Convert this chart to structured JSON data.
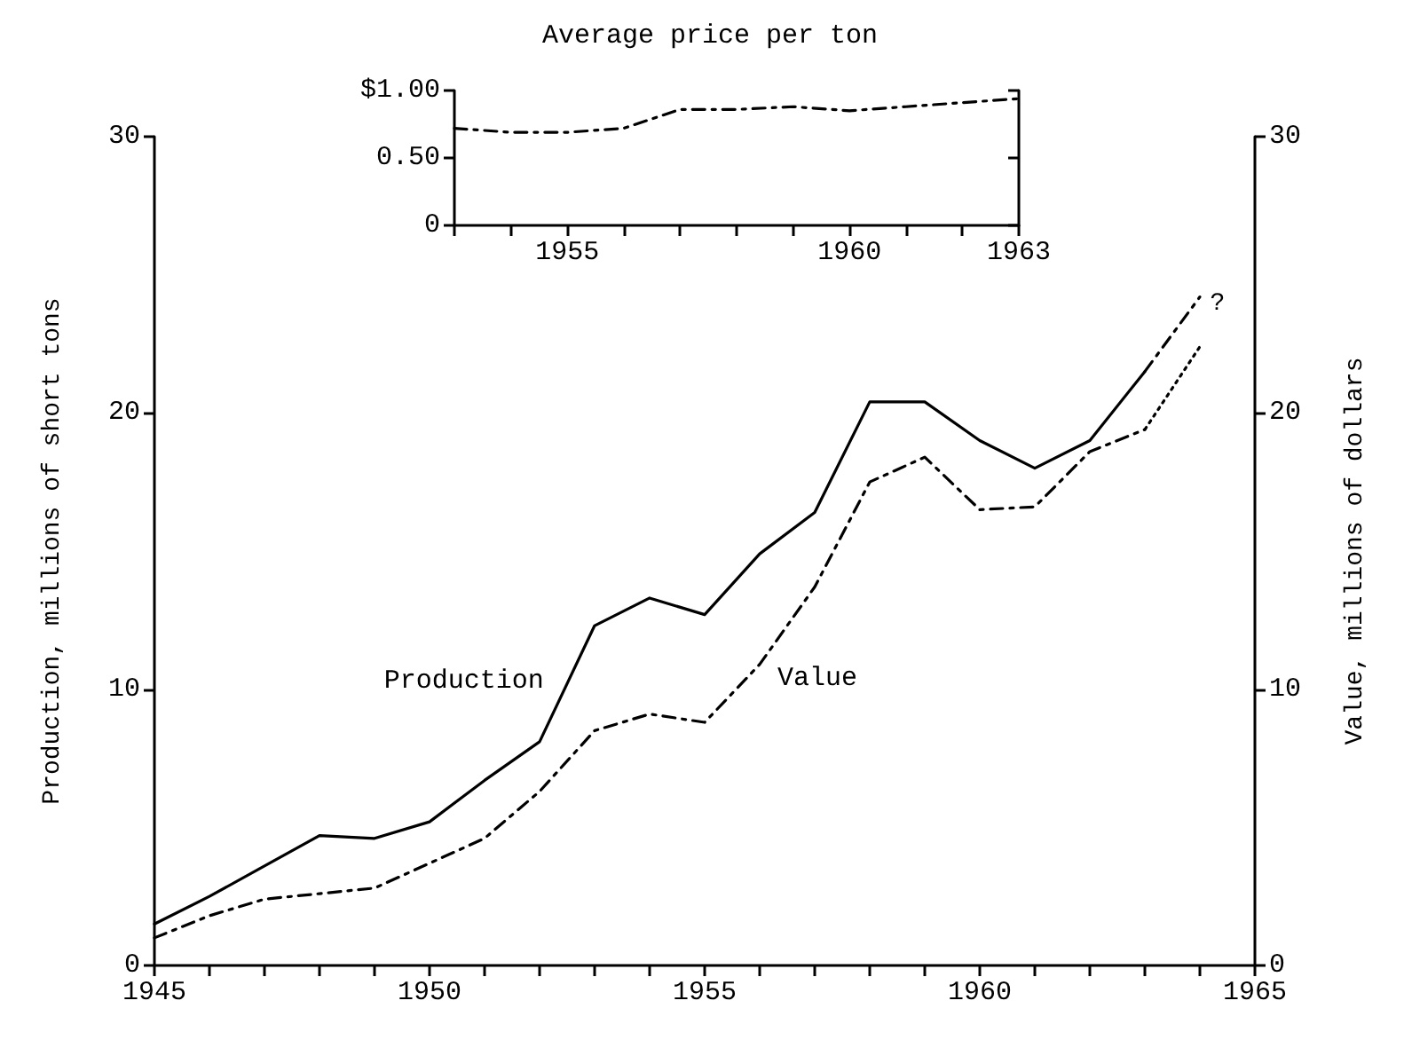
{
  "chart_data": [
    {
      "type": "line",
      "ylabel": "Production, millions of short tons",
      "y2label": "Value, millions of dollars",
      "x": [
        1945,
        1946,
        1947,
        1948,
        1949,
        1950,
        1951,
        1952,
        1953,
        1954,
        1955,
        1956,
        1957,
        1958,
        1959,
        1960,
        1961,
        1962,
        1963,
        1964
      ],
      "series": [
        {
          "name": "Production",
          "color": "#000000",
          "line_style": "solid",
          "values": [
            1.5,
            2.5,
            3.6,
            4.7,
            4.6,
            5.2,
            6.7,
            8.1,
            12.3,
            13.3,
            12.7,
            14.9,
            16.4,
            20.4,
            20.4,
            19.0,
            18.0,
            19.0,
            21.5,
            null
          ]
        },
        {
          "name": "Value",
          "color": "#000000",
          "axis": "y2",
          "line_style": "dashed",
          "values": [
            1.0,
            1.8,
            2.4,
            2.6,
            2.8,
            3.7,
            4.6,
            6.3,
            8.5,
            9.1,
            8.8,
            10.9,
            13.7,
            17.5,
            18.4,
            16.5,
            16.6,
            18.6,
            19.4,
            null
          ]
        },
        {
          "color": "#000000",
          "line_style": "dashed",
          "values": [
            null,
            null,
            null,
            null,
            null,
            null,
            null,
            null,
            null,
            null,
            null,
            null,
            null,
            null,
            null,
            null,
            null,
            null,
            21.5,
            24.2
          ]
        },
        {
          "color": "#000000",
          "axis": "y2",
          "line_style": "dotted",
          "values": [
            null,
            null,
            null,
            null,
            null,
            null,
            null,
            null,
            null,
            null,
            null,
            null,
            null,
            null,
            null,
            null,
            null,
            null,
            19.4,
            22.4
          ]
        }
      ],
      "xlim": [
        1945,
        1965
      ],
      "xticks": [
        1945,
        {
          "value": 1946,
          "label": null
        },
        {
          "value": 1947,
          "label": null
        },
        {
          "value": 1948,
          "label": null
        },
        {
          "value": 1949,
          "label": null
        },
        1950,
        {
          "value": 1951,
          "label": null
        },
        {
          "value": 1952,
          "label": null
        },
        {
          "value": 1953,
          "label": null
        },
        {
          "value": 1954,
          "label": null
        },
        1955,
        {
          "value": 1956,
          "label": null
        },
        {
          "value": 1957,
          "label": null
        },
        {
          "value": 1958,
          "label": null
        },
        {
          "value": 1959,
          "label": null
        },
        1960,
        {
          "value": 1961,
          "label": null
        },
        {
          "value": 1962,
          "label": null
        },
        {
          "value": 1963,
          "label": null
        },
        {
          "value": 1964,
          "label": null
        },
        1965
      ],
      "ylim": [
        0,
        30
      ],
      "yticks": [
        0,
        10,
        20,
        30
      ],
      "y2lim": [
        0,
        30
      ],
      "y2ticks": [
        0,
        10,
        20,
        30
      ],
      "grid": false,
      "marker": "none",
      "annotations": [
        "?"
      ]
    },
    {
      "type": "line",
      "title": "Average price per ton",
      "x": [
        1953,
        1954,
        1955,
        1956,
        1957,
        1958,
        1959,
        1960,
        1961,
        1962,
        1963
      ],
      "series": [
        {
          "color": "#000000",
          "values": [
            0.72,
            0.69,
            0.69,
            0.72,
            0.86,
            0.86,
            0.88,
            0.85,
            0.88,
            0.91,
            0.94
          ]
        }
      ],
      "line_style": "dashed",
      "marker": "none",
      "grid": false,
      "xlim": [
        1953,
        1963
      ],
      "xticks": [
        {
          "value": 1953,
          "label": null
        },
        {
          "value": 1954,
          "label": null
        },
        1955,
        {
          "value": 1956,
          "label": null
        },
        {
          "value": 1957,
          "label": null
        },
        {
          "value": 1958,
          "label": null
        },
        {
          "value": 1959,
          "label": null
        },
        1960,
        {
          "value": 1961,
          "label": null
        },
        {
          "value": 1962,
          "label": null
        },
        1963
      ],
      "ylim": [
        0,
        1
      ],
      "yticks": [
        0,
        {
          "value": 0.5,
          "label": "0.50"
        },
        {
          "value": 1,
          "label": "$1.00"
        }
      ]
    }
  ]
}
